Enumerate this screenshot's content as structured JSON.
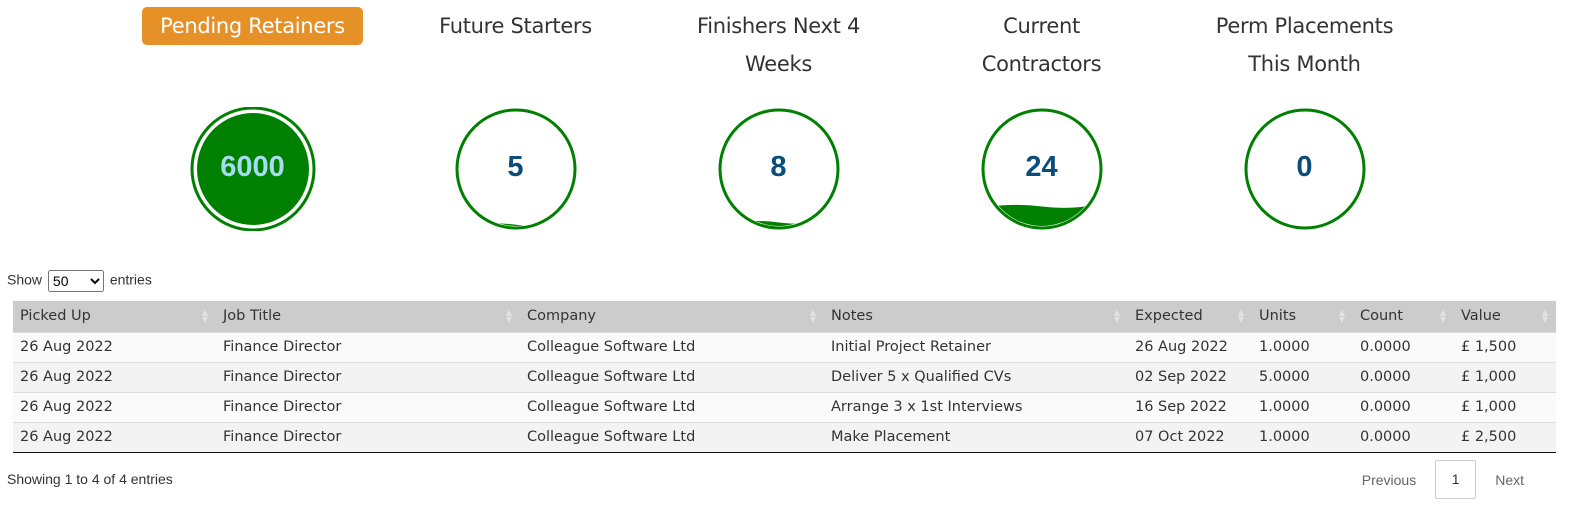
{
  "widgets": [
    {
      "title": "Pending Retainers",
      "value": "6000",
      "fill_percent": 100,
      "active": true
    },
    {
      "title": "Future Starters",
      "value": "5",
      "fill_percent": 2,
      "active": false
    },
    {
      "title": "Finishers Next 4 Weeks",
      "value": "8",
      "fill_percent": 4,
      "active": false
    },
    {
      "title": "Current Contractors",
      "value": "24",
      "fill_percent": 18,
      "active": false
    },
    {
      "title": "Perm Placements This Month",
      "value": "0",
      "fill_percent": 0,
      "active": false
    }
  ],
  "colors": {
    "accent": "#e69128",
    "gauge": "#008000",
    "value": "#0a4d7a"
  },
  "length": {
    "show": "Show",
    "selected": "50",
    "entries": "entries"
  },
  "table": {
    "columns": [
      "Picked Up",
      "Job Title",
      "Company",
      "Notes",
      "Expected",
      "Units",
      "Count",
      "Value"
    ],
    "rows": [
      [
        "26 Aug 2022",
        "Finance Director",
        "Colleague Software Ltd",
        "Initial Project Retainer",
        "26 Aug 2022",
        "1.0000",
        "0.0000",
        "£ 1,500"
      ],
      [
        "26 Aug 2022",
        "Finance Director",
        "Colleague Software Ltd",
        "Deliver 5 x Qualified CVs",
        "02 Sep 2022",
        "5.0000",
        "0.0000",
        "£ 1,000"
      ],
      [
        "26 Aug 2022",
        "Finance Director",
        "Colleague Software Ltd",
        "Arrange 3 x 1st Interviews",
        "16 Sep 2022",
        "1.0000",
        "0.0000",
        "£ 1,000"
      ],
      [
        "26 Aug 2022",
        "Finance Director",
        "Colleague Software Ltd",
        "Make Placement",
        "07 Oct 2022",
        "1.0000",
        "0.0000",
        "£ 2,500"
      ]
    ]
  },
  "info": "Showing 1 to 4 of 4 entries",
  "pager": {
    "previous": "Previous",
    "current": "1",
    "next": "Next"
  }
}
